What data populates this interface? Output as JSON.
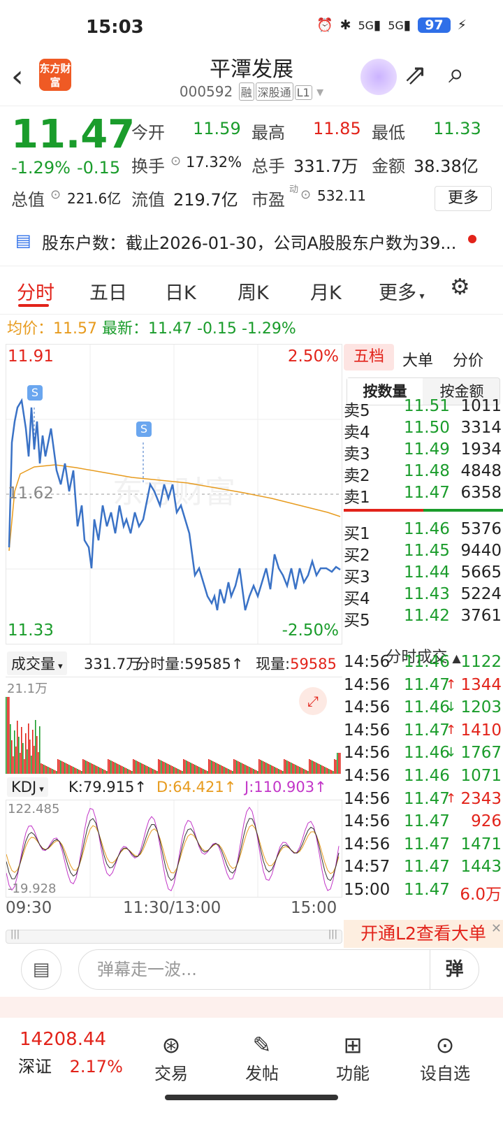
{
  "status": {
    "time": "15:03",
    "net1": "5G",
    "net2": "5G",
    "battery": "97"
  },
  "header": {
    "logo": "东方财富",
    "title": "平潭发展",
    "code": "000592",
    "tags": [
      "融",
      "深股通",
      "L1"
    ]
  },
  "quote": {
    "price": "11.47",
    "pct": "-1.29%",
    "chg": "-0.15",
    "open_label": "今开",
    "open": "11.59",
    "high_label": "最高",
    "high": "11.85",
    "low_label": "最低",
    "low": "11.33",
    "turnover_label": "换手",
    "turnover": "17.32%",
    "vol_label": "总手",
    "vol": "331.7万",
    "amt_label": "金额",
    "amt": "38.38亿",
    "mcap_label": "总值",
    "mcap": "221.6亿",
    "float_label": "流值",
    "float": "219.7亿",
    "pe_label": "市盈",
    "pe_sup": "动",
    "pe": "532.11",
    "more": "更多"
  },
  "notice": {
    "text": "股东户数：截止2026-01-30，公司A股股东户数为39..."
  },
  "tabs": [
    "分时",
    "五日",
    "日K",
    "周K",
    "月K",
    "更多"
  ],
  "avgline": {
    "avg_label": "均价：",
    "avg": "11.57",
    "last_label": "最新：",
    "last": "11.47",
    "chg": "-0.15",
    "pct": "-1.29%"
  },
  "chart": {
    "top": "11.91",
    "top_pct": "2.50%",
    "mid": "11.62",
    "bottom": "11.33",
    "bottom_pct": "-2.50%",
    "marker": "S",
    "watermark": "东方财富"
  },
  "volume": {
    "label": "成交量",
    "total": "331.7万",
    "fs_label": "分时量:",
    "fs": "59585↑",
    "now_label": "现量:",
    "now": "59585",
    "scale": "21.1万"
  },
  "kdj": {
    "label": "KDJ",
    "k": "K:79.915↑",
    "d": "D:64.421↑",
    "j": "J:110.903↑",
    "hi": "122.485",
    "lo": "-19.928"
  },
  "time_axis": [
    "09:30",
    "11:30/13:00",
    "15:00"
  ],
  "side": {
    "tabs": [
      "五档",
      "大单",
      "分价"
    ],
    "seg": [
      "按数量",
      "按金额"
    ],
    "asks": [
      [
        "卖5",
        "11.51",
        "1011"
      ],
      [
        "卖4",
        "11.50",
        "3314"
      ],
      [
        "卖3",
        "11.49",
        "1934"
      ],
      [
        "卖2",
        "11.48",
        "4848"
      ],
      [
        "卖1",
        "11.47",
        "6358"
      ]
    ],
    "bids": [
      [
        "买1",
        "11.46",
        "5376"
      ],
      [
        "买2",
        "11.45",
        "9440"
      ],
      [
        "买3",
        "11.44",
        "5665"
      ],
      [
        "买4",
        "11.43",
        "5224"
      ],
      [
        "买5",
        "11.42",
        "3761"
      ]
    ],
    "trade_header": "分时成交",
    "trades": [
      [
        "14:56",
        "11.46",
        "",
        "1122",
        "g"
      ],
      [
        "14:56",
        "11.47",
        "↑",
        "1344",
        "r"
      ],
      [
        "14:56",
        "11.46",
        "↓",
        "1203",
        "g"
      ],
      [
        "14:56",
        "11.47",
        "↑",
        "1410",
        "r"
      ],
      [
        "14:56",
        "11.46",
        "↓",
        "1767",
        "g"
      ],
      [
        "14:56",
        "11.46",
        "",
        "1071",
        "g"
      ],
      [
        "14:56",
        "11.47",
        "↑",
        "2343",
        "r"
      ],
      [
        "14:56",
        "11.47",
        "",
        "926",
        "r"
      ],
      [
        "14:56",
        "11.47",
        "",
        "1471",
        "g"
      ],
      [
        "14:57",
        "11.47",
        "",
        "1443",
        "g"
      ],
      [
        "15:00",
        "11.47",
        "",
        "6.0万",
        "r"
      ]
    ],
    "l2": "开通L2查看大单"
  },
  "bottom": {
    "danmu_placeholder": "弹幕走一波...",
    "danmu_send": "弹",
    "index_value": "14208.44",
    "index_name": "深证",
    "index_pct": "2.17%",
    "nav": [
      {
        "label": "交易",
        "icon": "yen-icon"
      },
      {
        "label": "发帖",
        "icon": "edit-icon"
      },
      {
        "label": "功能",
        "icon": "grid-icon"
      },
      {
        "label": "设自选",
        "icon": "more-icon"
      }
    ]
  }
}
